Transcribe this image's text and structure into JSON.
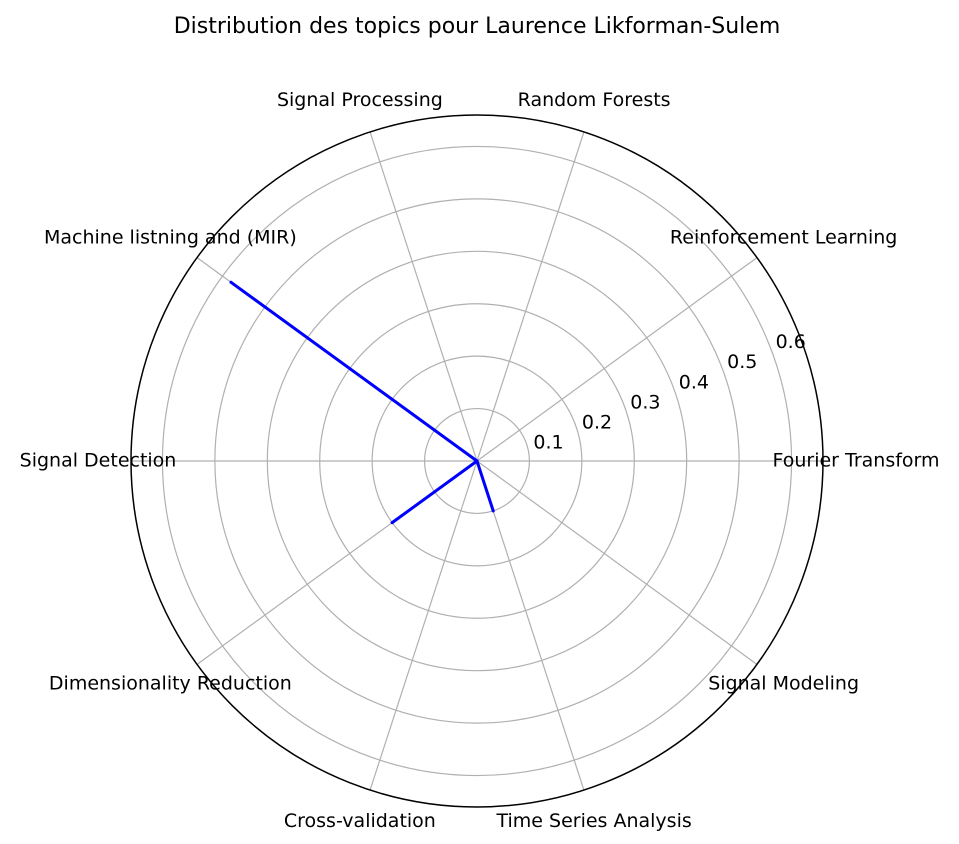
{
  "chart_data": {
    "type": "radar",
    "title": "Distribution des topics pour Laurence Likforman-Sulem",
    "categories": [
      "Fourier Transform",
      "Reinforcement Learning",
      "Random Forests",
      "Signal Processing",
      "Machine listning and (MIR)",
      "Signal Detection",
      "Dimensionality Reduction",
      "Cross-validation",
      "Time Series Analysis",
      "Signal Modeling"
    ],
    "values": [
      0.0,
      0.0,
      0.0,
      0.0,
      0.58,
      0.0,
      0.2,
      0.0,
      0.1,
      0.0
    ],
    "rticks": [
      0.1,
      0.2,
      0.3,
      0.4,
      0.5,
      0.6
    ],
    "rtick_labels": [
      "0.1",
      "0.2",
      "0.3",
      "0.4",
      "0.5",
      "0.6"
    ],
    "rlim": [
      0,
      0.66
    ],
    "line_color": "#0000ff",
    "grid_color": "#b0b0b0",
    "grid": true
  }
}
